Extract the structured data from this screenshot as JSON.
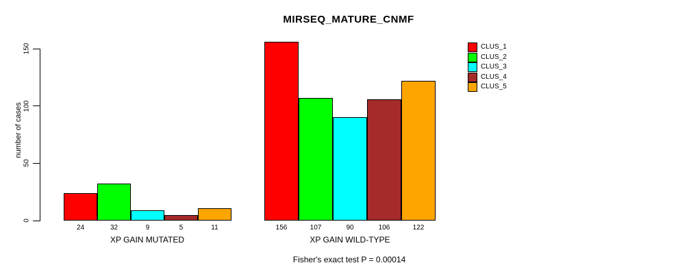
{
  "chart_data": {
    "type": "bar",
    "title": "MIRSEQ_MATURE_CNMF",
    "ylabel": "number of cases",
    "xlabel": "",
    "footnote": "Fisher's exact test P = 0.00014",
    "categories": [
      "XP GAIN MUTATED",
      "XP GAIN WILD-TYPE"
    ],
    "series": [
      {
        "name": "CLUS_1",
        "color": "#FF0000",
        "values": [
          24,
          156
        ]
      },
      {
        "name": "CLUS_2",
        "color": "#00FF00",
        "values": [
          32,
          107
        ]
      },
      {
        "name": "CLUS_3",
        "color": "#00FFFF",
        "values": [
          9,
          90
        ]
      },
      {
        "name": "CLUS_4",
        "color": "#A52A2A",
        "values": [
          5,
          106
        ]
      },
      {
        "name": "CLUS_5",
        "color": "#FFA500",
        "values": [
          11,
          122
        ]
      }
    ],
    "ylim": [
      0,
      150
    ],
    "yticks": [
      0,
      50,
      100,
      150
    ],
    "grid": false,
    "legend_position": "right",
    "bar_value_labels": true,
    "axis_color": "#000000",
    "background_color": "#FFFFFF"
  }
}
